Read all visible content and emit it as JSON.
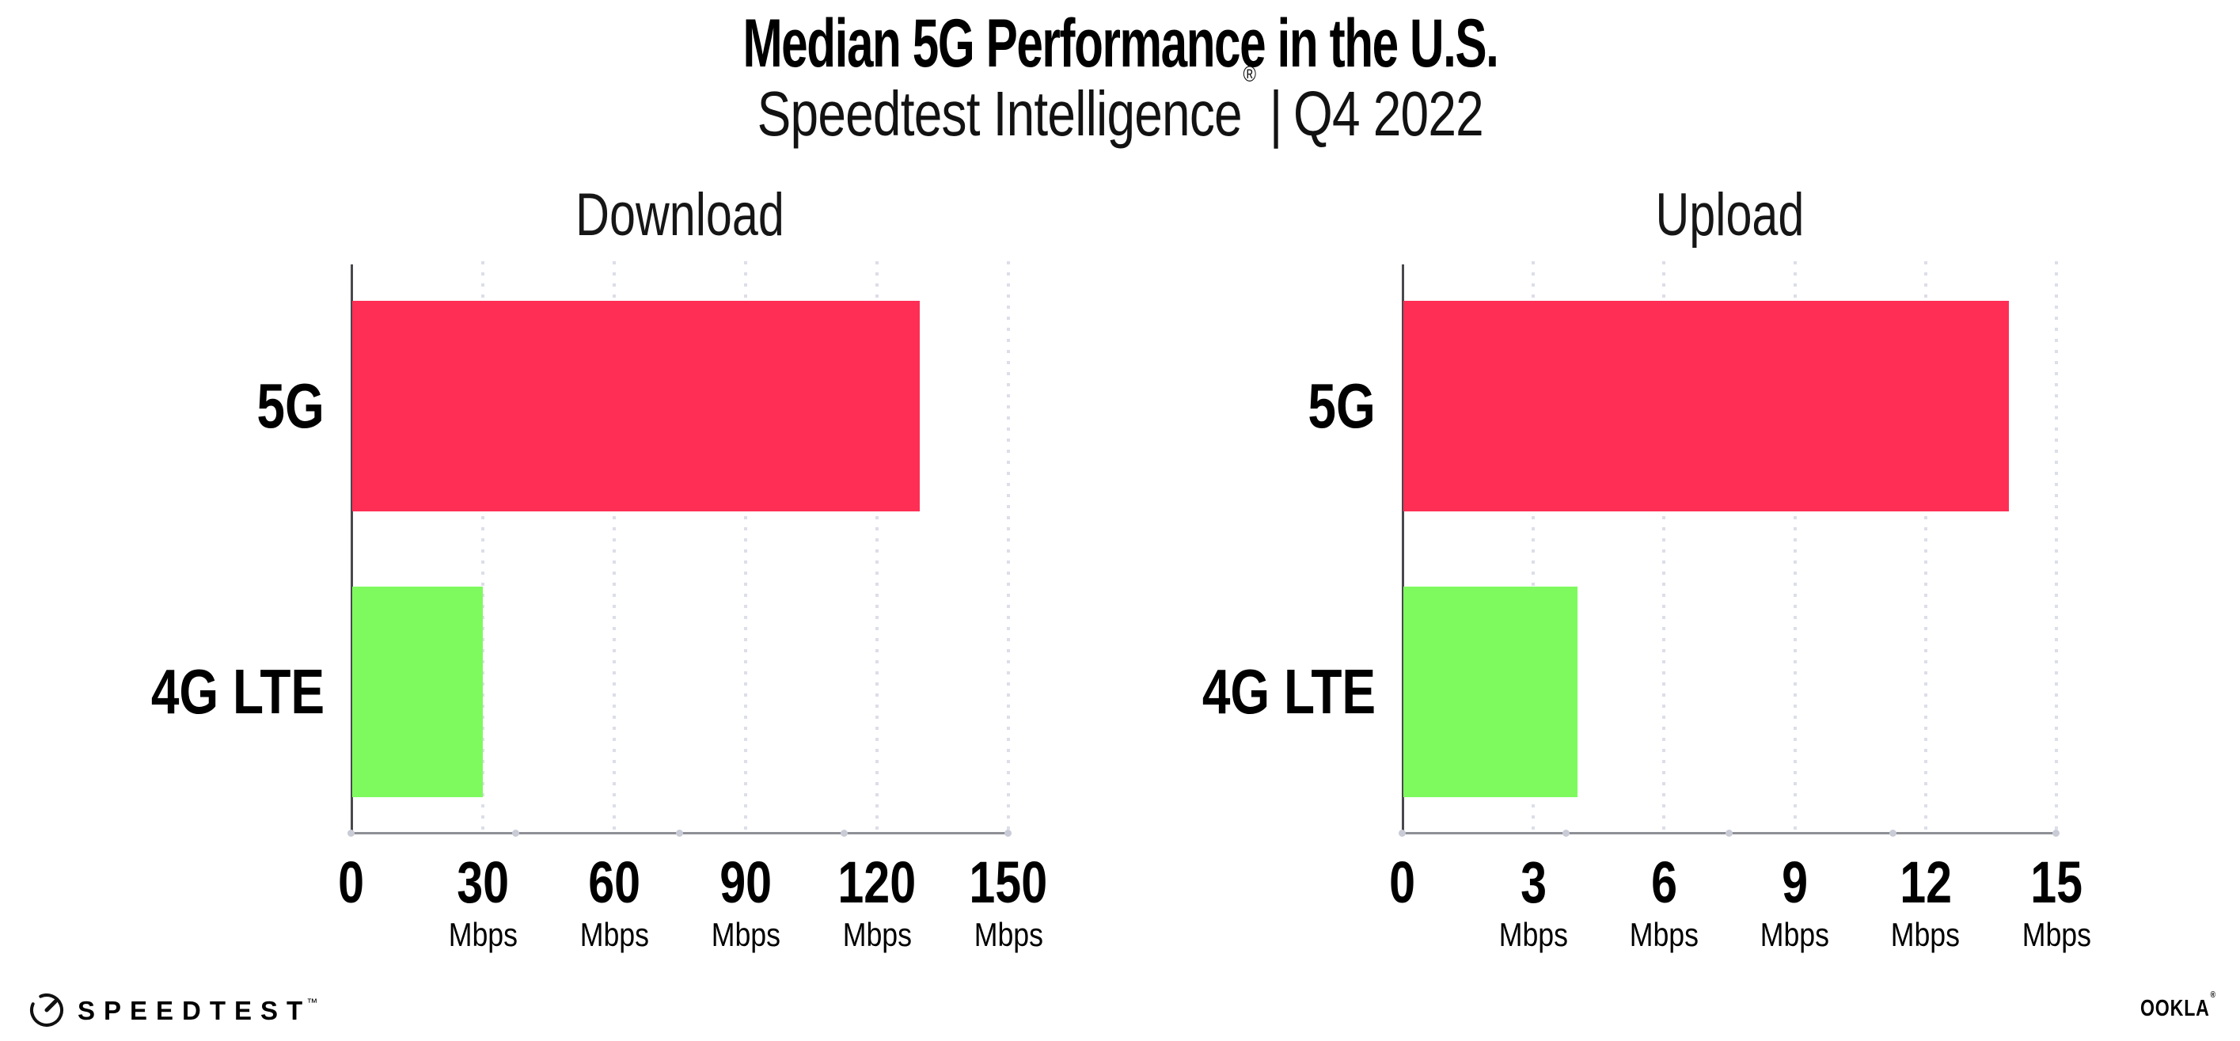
{
  "header": {
    "title": "Median 5G Performance in the U.S.",
    "subtitle_brand": "Speedtest Intelligence",
    "subtitle_registered": "®",
    "subtitle_separator": "|",
    "subtitle_period": "Q4 2022"
  },
  "chart_data": [
    {
      "type": "bar",
      "orientation": "horizontal",
      "title": "Download",
      "categories": [
        "5G",
        "4G LTE"
      ],
      "values": [
        129.5,
        29.8
      ],
      "unit": "Mbps",
      "xlim": [
        0,
        150
      ],
      "xticks": [
        0,
        30,
        60,
        90,
        120,
        150
      ],
      "grid": "dotted-vertical",
      "legend": "none",
      "series_colors": [
        "#ff2e55",
        "#7efa5f"
      ]
    },
    {
      "type": "bar",
      "orientation": "horizontal",
      "title": "Upload",
      "categories": [
        "5G",
        "4G LTE"
      ],
      "values": [
        13.9,
        4.0
      ],
      "unit": "Mbps",
      "xlim": [
        0,
        15
      ],
      "xticks": [
        0,
        3,
        6,
        9,
        12,
        15
      ],
      "grid": "dotted-vertical",
      "legend": "none",
      "series_colors": [
        "#ff2e55",
        "#7efa5f"
      ]
    }
  ],
  "footer": {
    "speedtest_label": "SPEEDTEST",
    "speedtest_tm": "™",
    "ookla_label": "OOKLA",
    "ookla_reg": "®"
  },
  "colors": {
    "bar_5g": "#ff2e55",
    "bar_4g": "#7efa5f",
    "gridline": "#dcdee9",
    "baseline": "#8f9096",
    "y_axis": "#48484e",
    "axis_tick_dot": "#c9cbd6",
    "text": "#000000"
  }
}
